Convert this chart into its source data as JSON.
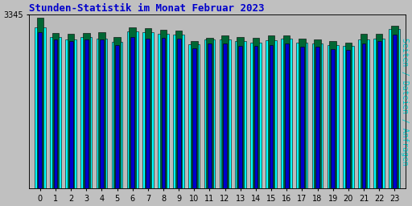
{
  "title": "Stunden-Statistik im Monat Februar 2023",
  "ylabel_right": "Seiten / Dateien / Anfragen",
  "ytick_label": "3345",
  "hours": [
    0,
    1,
    2,
    3,
    4,
    5,
    6,
    7,
    8,
    9,
    10,
    11,
    12,
    13,
    14,
    15,
    16,
    17,
    18,
    19,
    20,
    21,
    22,
    23
  ],
  "cyan_vals": [
    3150,
    2960,
    2920,
    2960,
    2940,
    2870,
    3080,
    3060,
    3030,
    3010,
    2820,
    2910,
    2910,
    2880,
    2860,
    2900,
    2930,
    2860,
    2840,
    2810,
    2790,
    2920,
    2940,
    3120
  ],
  "green_vals": [
    3345,
    3050,
    3020,
    3040,
    3060,
    2960,
    3150,
    3140,
    3100,
    3090,
    2890,
    2950,
    2990,
    2960,
    2950,
    2990,
    3000,
    2940,
    2920,
    2890,
    2860,
    3020,
    3030,
    3190
  ],
  "blue_vals": [
    3060,
    2910,
    2880,
    2910,
    2920,
    2810,
    2970,
    2940,
    2950,
    2930,
    2740,
    2840,
    2840,
    2790,
    2790,
    2810,
    2840,
    2770,
    2770,
    2730,
    2710,
    2840,
    2880,
    3010
  ],
  "color_cyan": "#00ffff",
  "color_green": "#006633",
  "color_blue": "#0000cc",
  "bg_color": "#c0c0c0",
  "plot_bg": "#bbbbbb",
  "title_color": "#0000cc",
  "ylabel_right_color": "#00cccc",
  "ymin": 0,
  "ymax": 3400,
  "figwidth": 5.12,
  "figheight": 2.56
}
